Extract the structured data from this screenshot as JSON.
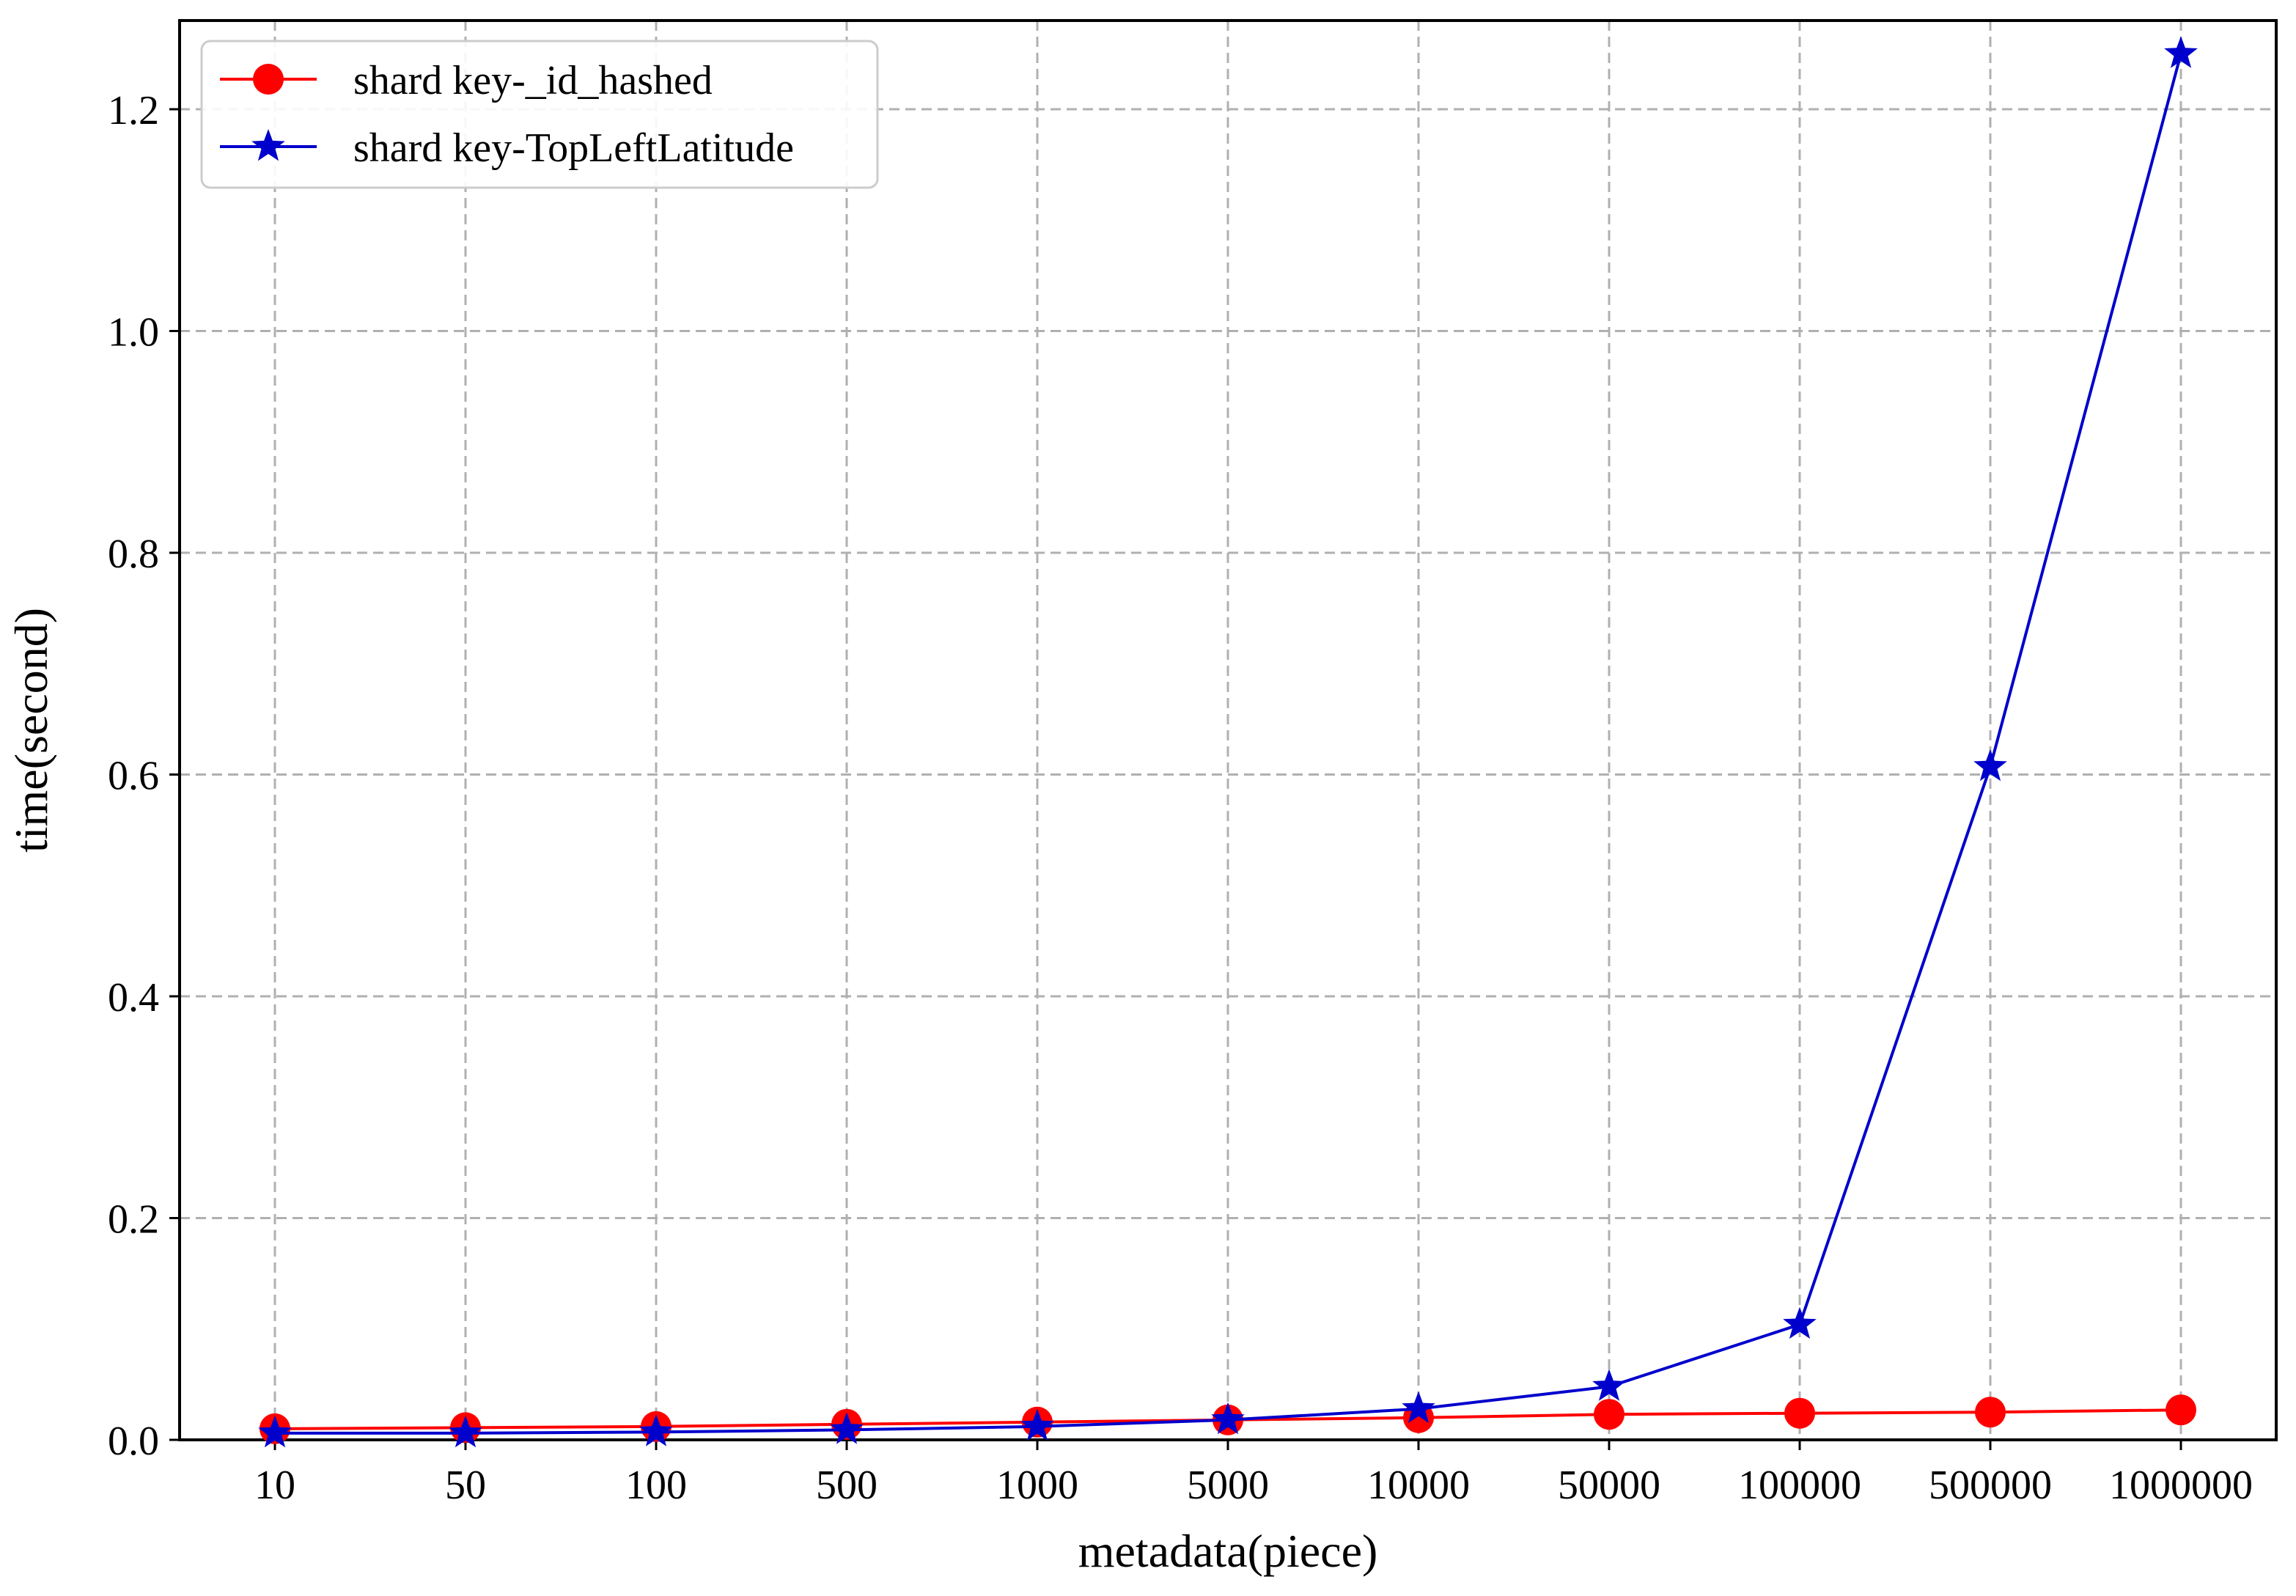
{
  "chart_data": {
    "type": "line",
    "title": "",
    "xlabel": "metadata(piece)",
    "ylabel": "time(second)",
    "categories": [
      "10",
      "50",
      "100",
      "500",
      "1000",
      "5000",
      "10000",
      "50000",
      "100000",
      "500000",
      "1000000"
    ],
    "ylim": [
      0.0,
      1.28
    ],
    "yticks": [
      "0.0",
      "0.2",
      "0.4",
      "0.6",
      "0.8",
      "1.0",
      "1.2"
    ],
    "grid": true,
    "legend_position": "top-left",
    "series": [
      {
        "name": "shard key-_id_hashed",
        "color": "#ff0000",
        "marker": "circle",
        "values": [
          0.01,
          0.011,
          0.012,
          0.014,
          0.016,
          0.018,
          0.02,
          0.023,
          0.024,
          0.025,
          0.027
        ]
      },
      {
        "name": "shard key-TopLeftLatitude",
        "color": "#0000cc",
        "marker": "star",
        "values": [
          0.006,
          0.006,
          0.007,
          0.009,
          0.012,
          0.018,
          0.028,
          0.048,
          0.104,
          0.607,
          1.25
        ]
      }
    ]
  }
}
